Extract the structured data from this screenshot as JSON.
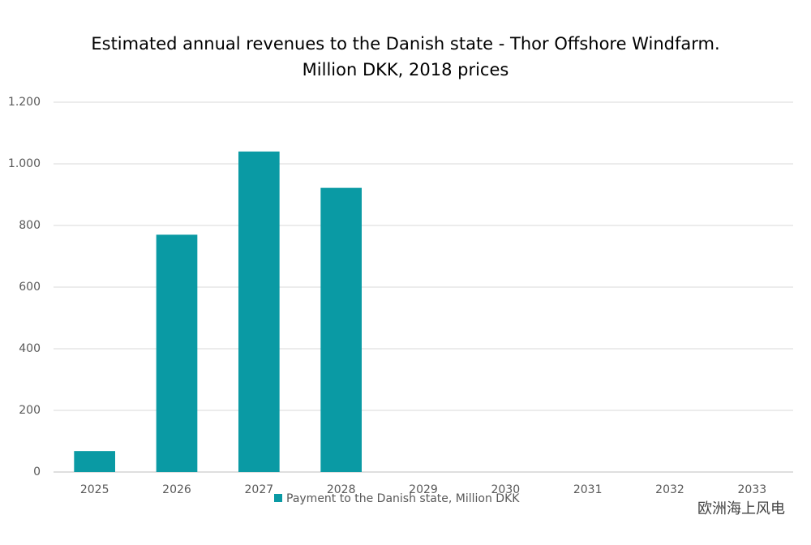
{
  "chart_data": {
    "type": "bar",
    "title": "Estimated annual revenues to the Danish state - Thor Offshore Windfarm.",
    "subtitle": "Million DKK, 2018 prices",
    "categories": [
      "2025",
      "2026",
      "2027",
      "2028",
      "2029",
      "2030",
      "2031",
      "2032",
      "2033"
    ],
    "series": [
      {
        "name": "Payment to the Danish state, Million DKK",
        "color": "#0a9aa4",
        "values": [
          68,
          770,
          1040,
          922,
          0,
          0,
          0,
          0,
          0
        ]
      }
    ],
    "ylim": [
      0,
      1200
    ],
    "yticks": [
      0,
      200,
      400,
      600,
      800,
      {
        "value": 1000,
        "label": "1.000"
      },
      {
        "value": 1200,
        "label": "1.200"
      }
    ],
    "grid": true,
    "legend": "bottom",
    "watermark": "欧洲海上风电"
  }
}
